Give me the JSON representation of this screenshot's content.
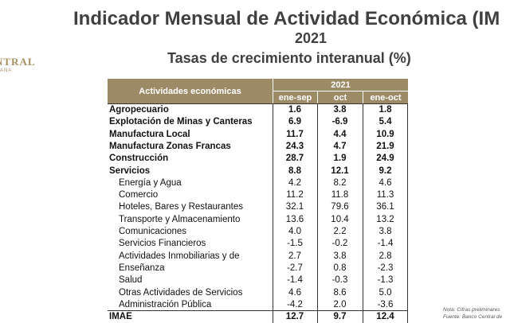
{
  "header": {
    "title": "Indicador Mensual de Actividad Económica (IM",
    "year": "2021",
    "subtitle": "Tasas de crecimiento interanual (%)",
    "logo": "NTRAL",
    "logo_sub": "ANA"
  },
  "table": {
    "label_header": "Actividades económicas",
    "group_header": "2021",
    "columns": [
      "ene-sep",
      "oct",
      "ene-oct"
    ],
    "rows": [
      {
        "label": "Agropecuario",
        "values": [
          "1.6",
          "3.8",
          "1.8"
        ],
        "bold": true
      },
      {
        "label": "Explotación de Minas y Canteras",
        "values": [
          "6.9",
          "-6.9",
          "5.4"
        ],
        "bold": true
      },
      {
        "label": "Manufactura Local",
        "values": [
          "11.7",
          "4.4",
          "10.9"
        ],
        "bold": true
      },
      {
        "label": "Manufactura Zonas Francas",
        "values": [
          "24.3",
          "4.7",
          "21.9"
        ],
        "bold": true
      },
      {
        "label": "Construcción",
        "values": [
          "28.7",
          "1.9",
          "24.9"
        ],
        "bold": true
      },
      {
        "label": "Servicios",
        "values": [
          "8.8",
          "12.1",
          "9.2"
        ],
        "bold": true
      },
      {
        "label": "Energía y Agua",
        "values": [
          "4.2",
          "8.2",
          "4.6"
        ],
        "bold": false
      },
      {
        "label": "Comercio",
        "values": [
          "11.2",
          "11.8",
          "11.3"
        ],
        "bold": false
      },
      {
        "label": "Hoteles, Bares y Restaurantes",
        "values": [
          "32.1",
          "79.6",
          "36.1"
        ],
        "bold": false
      },
      {
        "label": "Transporte y Almacenamiento",
        "values": [
          "13.6",
          "10.4",
          "13.2"
        ],
        "bold": false
      },
      {
        "label": "Comunicaciones",
        "values": [
          "4.0",
          "2.2",
          "3.8"
        ],
        "bold": false
      },
      {
        "label": "Servicios Financieros",
        "values": [
          "-1.5",
          "-0.2",
          "-1.4"
        ],
        "bold": false
      },
      {
        "label": "Actividades Inmobiliarias y de",
        "values": [
          "2.7",
          "3.8",
          "2.8"
        ],
        "bold": false
      },
      {
        "label": "Enseñanza",
        "values": [
          "-2.7",
          "0.8",
          "-2.3"
        ],
        "bold": false
      },
      {
        "label": "Salud",
        "values": [
          "-1.4",
          "-0.3",
          "-1.3"
        ],
        "bold": false
      },
      {
        "label": "Otras Actividades de Servicios",
        "values": [
          "4.6",
          "8.6",
          "5.0"
        ],
        "bold": false
      },
      {
        "label": "Administración Pública",
        "values": [
          "-4.2",
          "2.0",
          "-3.6"
        ],
        "bold": false
      },
      {
        "label": "IMAE",
        "values": [
          "12.7",
          "9.7",
          "12.4"
        ],
        "bold": true
      }
    ]
  },
  "notes": [
    "Nota: Cifras preliminares",
    "Fuente: Banco Central de"
  ]
}
